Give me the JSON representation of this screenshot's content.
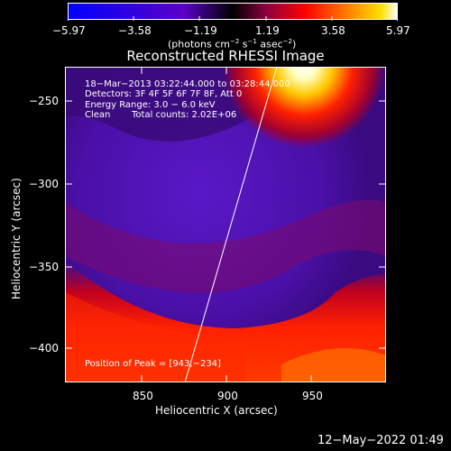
{
  "colorbar": {
    "ticks": [
      "−5.97",
      "−3.58",
      "−1.19",
      "1.19",
      "3.58",
      "5.97"
    ],
    "unit_text": "(photons cm",
    "unit_exp1": "−2",
    "unit_s": " s",
    "unit_exp2": "−1",
    "unit_asec": " asec",
    "unit_exp3": "−2",
    "unit_close": ")"
  },
  "plot": {
    "title": "Reconstructed RHESSI Image",
    "xlabel": "Heliocentric X (arcsec)",
    "ylabel": "Heliocentric Y (arcsec)",
    "xticks": [
      "850",
      "900",
      "950"
    ],
    "yticks": [
      "−250",
      "−300",
      "−350",
      "−400"
    ],
    "annotations": {
      "time_range": "18−Mar−2013 03:22:44.000 to 03:28:44.000",
      "detectors": "Detectors: 3F 4F 5F 6F 7F 8F, Att 0",
      "energy": "Energy Range: 3.0 − 6.0 keV",
      "method": "Clean",
      "counts": "Total counts: 2.02E+06",
      "peak": "Position of Peak = [943,−234]"
    }
  },
  "footer": {
    "date": "12−May−2022 01:49"
  },
  "colors": {
    "background": "#000000",
    "text": "#ffffff"
  }
}
